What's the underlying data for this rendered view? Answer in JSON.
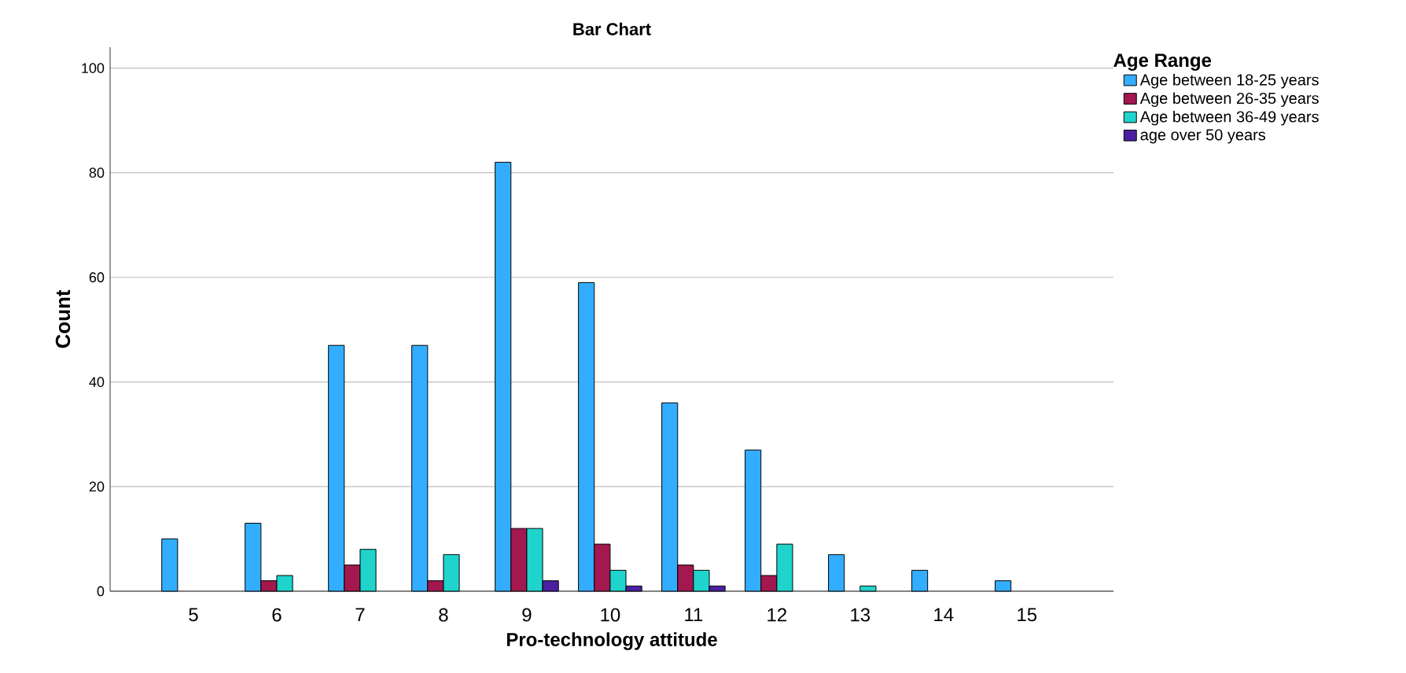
{
  "chart_data": {
    "type": "bar",
    "title": "Bar Chart",
    "xlabel": "Pro-technology attitude",
    "ylabel": "Count",
    "legend_title": "Age Range",
    "categories": [
      "5",
      "6",
      "7",
      "8",
      "9",
      "10",
      "11",
      "12",
      "13",
      "14",
      "15"
    ],
    "series": [
      {
        "name": "Age between 18-25 years",
        "color": "#33adff",
        "values": [
          10,
          13,
          47,
          47,
          82,
          59,
          36,
          27,
          7,
          4,
          2
        ]
      },
      {
        "name": "Age between 26-35 years",
        "color": "#a3184f",
        "values": [
          null,
          2,
          5,
          2,
          12,
          9,
          5,
          3,
          null,
          null,
          null
        ]
      },
      {
        "name": "Age between 36-49 years",
        "color": "#1fd4cc",
        "values": [
          null,
          3,
          8,
          7,
          12,
          4,
          4,
          9,
          1,
          null,
          null
        ]
      },
      {
        "name": "age over 50 years",
        "color": "#4a20a0",
        "values": [
          null,
          null,
          null,
          null,
          2,
          1,
          1,
          null,
          null,
          null,
          null
        ]
      }
    ],
    "ylim": [
      0,
      104
    ],
    "yticks": [
      0,
      20,
      40,
      60,
      80,
      100
    ],
    "grid": "y",
    "legend": "top right"
  }
}
